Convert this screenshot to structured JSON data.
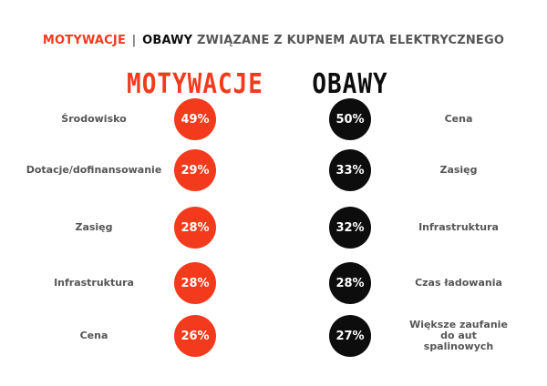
{
  "title": {
    "part1": "MOTYWACJE",
    "separator": "|",
    "part2": "OBAWY",
    "part3": "ZWIĄZANE Z KUPNEM AUTA ELEKTRYCZNEGO"
  },
  "colors": {
    "red": "#f43a1c",
    "black": "#0d0d0d",
    "gray_text": "#555555"
  },
  "chart_data": [
    {
      "type": "table",
      "title": "MOTYWACJE",
      "categories": [
        "Środowisko",
        "Dotacje/dofinansowanie",
        "Zasięg",
        "Infrastruktura",
        "Cena"
      ],
      "values": [
        49,
        29,
        28,
        28,
        26
      ],
      "value_labels": [
        "49%",
        "29%",
        "28%",
        "28%",
        "26%"
      ],
      "color": "#f43a1c"
    },
    {
      "type": "table",
      "title": "OBAWY",
      "categories": [
        "Cena",
        "Zasięg",
        "Infrastruktura",
        "Czas ładowania",
        "Większe zaufanie do aut spalinowych"
      ],
      "category_lines": [
        [
          "Cena"
        ],
        [
          "Zasięg"
        ],
        [
          "Infrastruktura"
        ],
        [
          "Czas ładowania"
        ],
        [
          "Większe zaufanie",
          "do aut",
          "spalinowych"
        ]
      ],
      "values": [
        50,
        33,
        32,
        28,
        27
      ],
      "value_labels": [
        "50%",
        "33%",
        "32%",
        "28%",
        "27%"
      ],
      "color": "#0d0d0d"
    }
  ]
}
